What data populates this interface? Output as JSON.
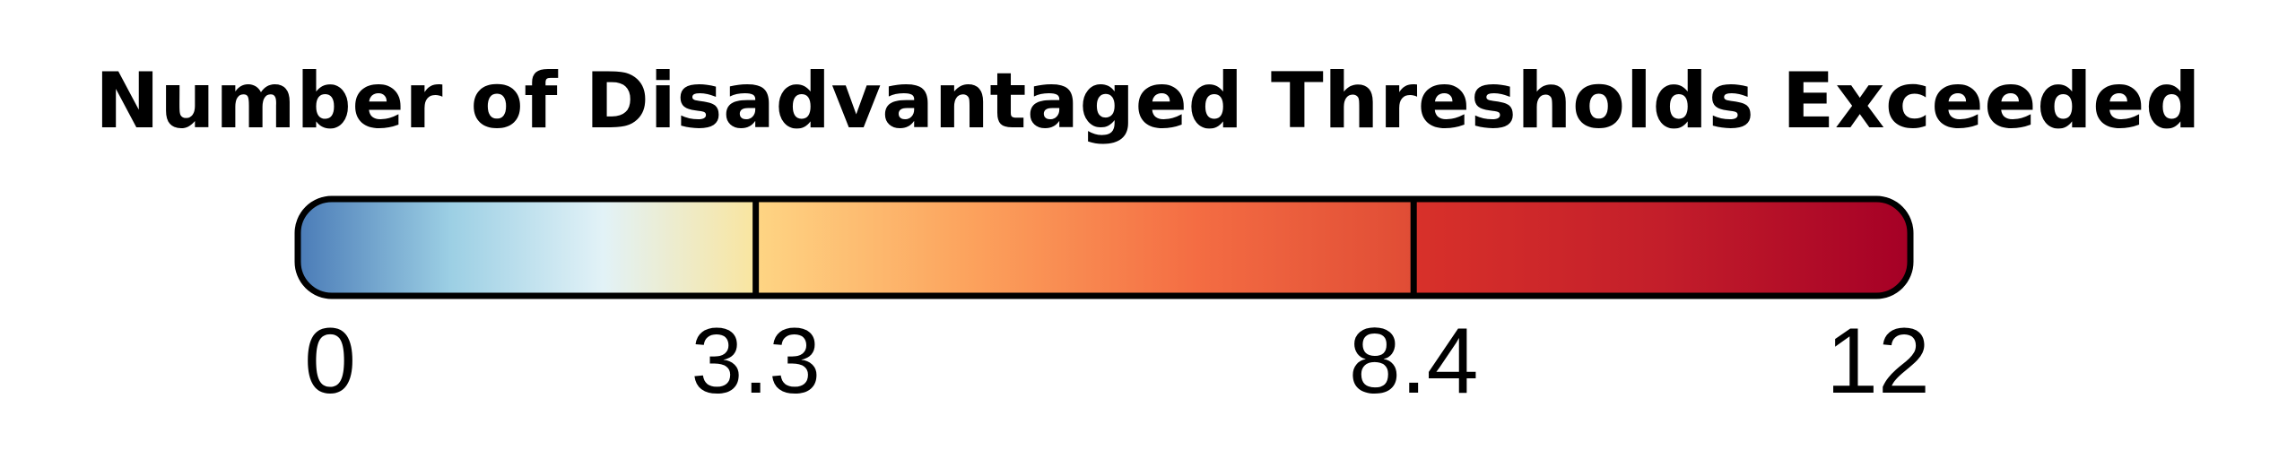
{
  "chart_data": {
    "type": "colorbar",
    "title": "Number of Disadvantaged Thresholds Exceeded",
    "range": [
      0,
      12
    ],
    "ticks": [
      0,
      3.3,
      8.4,
      12
    ],
    "tick_labels": [
      "0",
      "3.3",
      "8.4",
      "12"
    ],
    "segment_boundaries": [
      3.3,
      8.4
    ],
    "colormap": [
      "#4575b4",
      "#abd9e9",
      "#e0f3f8",
      "#fee090",
      "#fdae61",
      "#f46d43",
      "#d73027",
      "#a50026"
    ],
    "segments": [
      {
        "from": 0,
        "to": 3.3,
        "colors": [
          "#4a7bb7",
          "#9ccfe4",
          "#e2f2f7",
          "#f9e59f"
        ]
      },
      {
        "from": 3.3,
        "to": 8.4,
        "colors": [
          "#fed584",
          "#fca15c",
          "#f46d43",
          "#e04c35"
        ]
      },
      {
        "from": 8.4,
        "to": 12,
        "colors": [
          "#d8312a",
          "#c31e2a",
          "#a50026"
        ]
      }
    ],
    "outline_color": "#000000"
  }
}
